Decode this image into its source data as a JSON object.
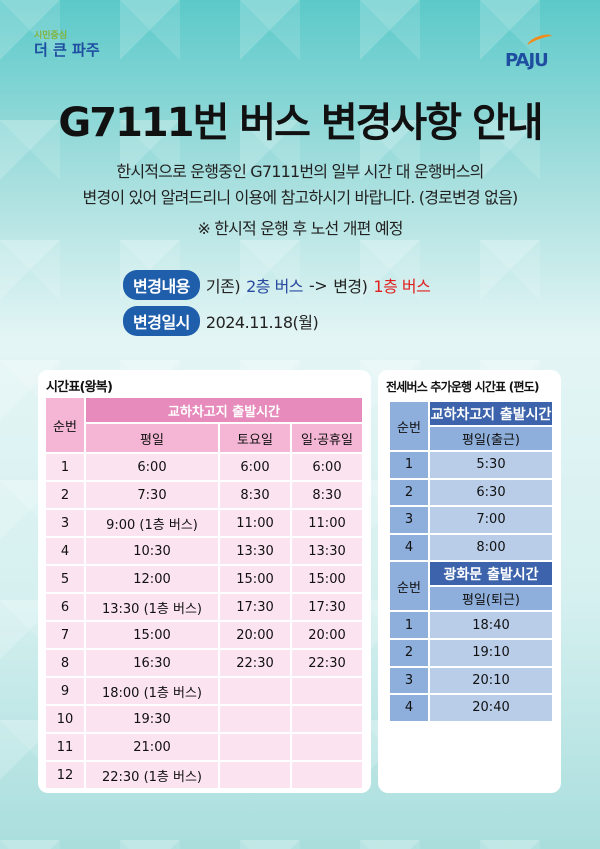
{
  "logo_left": {
    "line1": "시민중심",
    "line2": "더 큰 파주"
  },
  "logo_right": "PAJU",
  "title": "G7111번 버스 변경사항 안내",
  "desc": [
    "한시적으로 운행중인 G7111번의 일부 시간 대 운행버스의",
    "변경이 있어 알려드리니 이용에 참고하시기 바랍니다. (경로변경 없음)"
  ],
  "note": "※ 한시적 운행 후 노선 개편 예정",
  "change": {
    "label": "변경내용",
    "before_prefix": "기존)",
    "before": "2층 버스",
    "arrow": "->",
    "after_prefix": "변경)",
    "after": "1층 버스"
  },
  "date": {
    "label": "변경일시",
    "value": "2024.11.18(월)"
  },
  "left_table": {
    "title": "시간표(왕복)",
    "col_no": "순번",
    "group": "교하차고지 출발시간",
    "cols": [
      "평일",
      "토요일",
      "일·공휴일"
    ],
    "rows": [
      [
        "1",
        "6:00",
        "6:00",
        "6:00"
      ],
      [
        "2",
        "7:30",
        "8:30",
        "8:30"
      ],
      [
        "3",
        "9:00 (1층 버스)",
        "11:00",
        "11:00"
      ],
      [
        "4",
        "10:30",
        "13:30",
        "13:30"
      ],
      [
        "5",
        "12:00",
        "15:00",
        "15:00"
      ],
      [
        "6",
        "13:30 (1층 버스)",
        "17:30",
        "17:30"
      ],
      [
        "7",
        "15:00",
        "20:00",
        "20:00"
      ],
      [
        "8",
        "16:30",
        "22:30",
        "22:30"
      ],
      [
        "9",
        "18:00 (1층 버스)",
        "",
        ""
      ],
      [
        "10",
        "19:30",
        "",
        ""
      ],
      [
        "11",
        "21:00",
        "",
        ""
      ],
      [
        "12",
        "22:30 (1층 버스)",
        "",
        ""
      ]
    ]
  },
  "right_table": {
    "title": "전세버스 추가운행 시간표 (편도)",
    "sections": [
      {
        "col_no": "순번",
        "group": "교하차고지 출발시간",
        "col": "평일(출근)",
        "rows": [
          [
            "1",
            "5:30"
          ],
          [
            "2",
            "6:30"
          ],
          [
            "3",
            "7:00"
          ],
          [
            "4",
            "8:00"
          ]
        ]
      },
      {
        "col_no": "순번",
        "group": "광화문 출발시간",
        "col": "평일(퇴근)",
        "rows": [
          [
            "1",
            "18:40"
          ],
          [
            "2",
            "19:10"
          ],
          [
            "3",
            "20:10"
          ],
          [
            "4",
            "20:40"
          ]
        ]
      }
    ]
  }
}
